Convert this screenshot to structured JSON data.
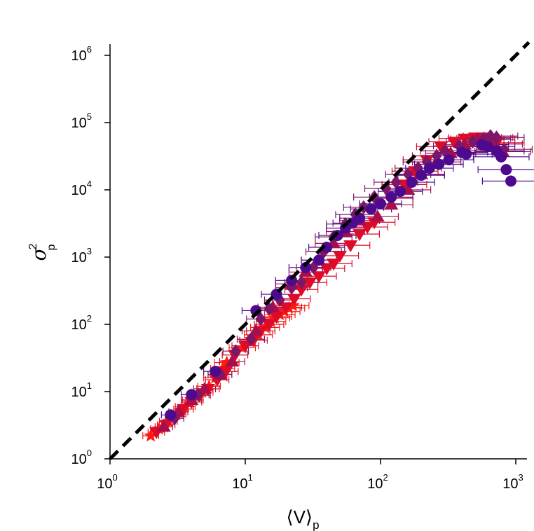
{
  "chart_data": {
    "type": "scatter",
    "x_scale": "log",
    "y_scale": "log",
    "xlim": [
      1,
      1000
    ],
    "ylim": [
      1,
      1000000
    ],
    "x_ticks": [
      {
        "value": 1,
        "base": "10",
        "exp": "0"
      },
      {
        "value": 10,
        "base": "10",
        "exp": "1"
      },
      {
        "value": 100,
        "base": "10",
        "exp": "2"
      },
      {
        "value": 1000,
        "base": "10",
        "exp": "3"
      }
    ],
    "y_ticks": [
      {
        "value": 1,
        "base": "10",
        "exp": "0"
      },
      {
        "value": 10,
        "base": "10",
        "exp": "1"
      },
      {
        "value": 100,
        "base": "10",
        "exp": "2"
      },
      {
        "value": 1000,
        "base": "10",
        "exp": "3"
      },
      {
        "value": 10000,
        "base": "10",
        "exp": "4"
      },
      {
        "value": 100000,
        "base": "10",
        "exp": "5"
      },
      {
        "value": 1000000,
        "base": "10",
        "exp": "6"
      }
    ],
    "xlabel": {
      "main": "⟨V⟩",
      "sub": "p"
    },
    "ylabel": {
      "main": "σ",
      "sup": "2",
      "sub": "p"
    },
    "grid": false,
    "reference_line": {
      "style": "dashed",
      "color": "#000000",
      "points": [
        [
          1,
          1
        ],
        [
          1250,
          1562500
        ]
      ]
    },
    "series": [
      {
        "marker": "star",
        "color": "#ff1a0d",
        "points": [
          [
            2.0,
            2.2
          ],
          [
            2.3,
            2.8
          ],
          [
            2.7,
            3.6
          ],
          [
            3.1,
            4.6
          ],
          [
            3.6,
            6.0
          ],
          [
            4.1,
            7.5
          ],
          [
            4.8,
            9.8
          ],
          [
            5.4,
            12
          ],
          [
            6.0,
            16
          ],
          [
            6.8,
            22
          ],
          [
            7.3,
            27
          ],
          [
            9.5,
            45
          ],
          [
            11,
            60
          ],
          [
            12.5,
            70
          ],
          [
            14,
            90
          ],
          [
            15.5,
            110
          ],
          [
            16.5,
            125
          ],
          [
            18,
            140
          ],
          [
            19.5,
            155
          ],
          [
            21,
            175
          ],
          [
            22.5,
            190
          ]
        ]
      },
      {
        "marker": "triangle-down",
        "color": "#dd0a28",
        "points": [
          [
            2.2,
            2.5
          ],
          [
            2.6,
            3.2
          ],
          [
            3.0,
            4.2
          ],
          [
            3.5,
            5.5
          ],
          [
            4.0,
            7.0
          ],
          [
            4.6,
            8.8
          ],
          [
            5.3,
            11
          ],
          [
            6.2,
            15
          ],
          [
            7.2,
            20
          ],
          [
            8.4,
            35
          ],
          [
            10,
            48
          ],
          [
            11.5,
            58
          ],
          [
            13,
            80
          ],
          [
            15,
            100
          ],
          [
            17,
            130
          ],
          [
            20,
            180
          ],
          [
            23,
            240
          ],
          [
            26,
            330
          ],
          [
            30,
            420
          ],
          [
            35,
            520
          ],
          [
            40,
            680
          ],
          [
            45,
            800
          ],
          [
            50,
            1050
          ],
          [
            60,
            1500
          ],
          [
            70,
            2200
          ],
          [
            80,
            2800
          ],
          [
            90,
            3300
          ],
          [
            120,
            7500
          ],
          [
            150,
            12000
          ],
          [
            180,
            19000
          ],
          [
            220,
            28000
          ],
          [
            280,
            44000
          ],
          [
            350,
            52000
          ],
          [
            420,
            58000
          ],
          [
            500,
            60000
          ],
          [
            600,
            60000
          ],
          [
            720,
            50000
          ]
        ]
      },
      {
        "marker": "triangle-up",
        "color": "#a80d4c",
        "points": [
          [
            2.5,
            3.0
          ],
          [
            3.2,
            5.0
          ],
          [
            4.0,
            7.5
          ],
          [
            5.0,
            11
          ],
          [
            6.5,
            18
          ],
          [
            8.0,
            28
          ],
          [
            12,
            80
          ],
          [
            16,
            180
          ],
          [
            22,
            400
          ],
          [
            28,
            600
          ],
          [
            35,
            900
          ],
          [
            45,
            1600
          ],
          [
            55,
            2400
          ],
          [
            70,
            3500
          ],
          [
            95,
            4000
          ],
          [
            120,
            6000
          ],
          [
            160,
            10000
          ],
          [
            200,
            17000
          ],
          [
            260,
            26000
          ],
          [
            330,
            35000
          ],
          [
            420,
            47000
          ],
          [
            520,
            57000
          ],
          [
            620,
            56000
          ],
          [
            700,
            48000
          ],
          [
            800,
            37000
          ]
        ]
      },
      {
        "marker": "diamond",
        "color": "#7e1668",
        "points": [
          [
            3.0,
            4.0
          ],
          [
            4.5,
            9.0
          ],
          [
            6.5,
            18
          ],
          [
            8.5,
            40
          ],
          [
            11,
            60
          ],
          [
            13,
            120
          ],
          [
            15,
            170
          ],
          [
            18,
            230
          ],
          [
            22,
            350
          ],
          [
            26,
            420
          ],
          [
            32,
            700
          ],
          [
            38,
            1200
          ],
          [
            45,
            2000
          ],
          [
            55,
            3100
          ],
          [
            65,
            4300
          ],
          [
            75,
            5500
          ],
          [
            90,
            7800
          ],
          [
            110,
            10500
          ],
          [
            130,
            13000
          ],
          [
            160,
            17000
          ],
          [
            190,
            21000
          ],
          [
            220,
            26000
          ],
          [
            260,
            32000
          ],
          [
            300,
            38000
          ],
          [
            380,
            45000
          ],
          [
            480,
            52000
          ],
          [
            580,
            58000
          ],
          [
            650,
            63000
          ],
          [
            720,
            60000
          ],
          [
            820,
            40000
          ]
        ]
      },
      {
        "marker": "circle",
        "color": "#4e0a8e",
        "points": [
          [
            2.8,
            4.5
          ],
          [
            4.0,
            9.0
          ],
          [
            6.0,
            20
          ],
          [
            12,
            160
          ],
          [
            17,
            280
          ],
          [
            22,
            450
          ],
          [
            28,
            700
          ],
          [
            35,
            900
          ],
          [
            40,
            1400
          ],
          [
            48,
            2100
          ],
          [
            55,
            2700
          ],
          [
            62,
            3200
          ],
          [
            70,
            3800
          ],
          [
            85,
            5200
          ],
          [
            100,
            6200
          ],
          [
            120,
            7800
          ],
          [
            140,
            9500
          ],
          [
            170,
            13000
          ],
          [
            200,
            16500
          ],
          [
            230,
            21000
          ],
          [
            270,
            24000
          ],
          [
            320,
            28000
          ],
          [
            400,
            36000
          ],
          [
            430,
            34000
          ],
          [
            560,
            47000
          ],
          [
            620,
            44000
          ],
          [
            720,
            38000
          ],
          [
            780,
            31000
          ],
          [
            850,
            20000
          ],
          [
            920,
            13500
          ]
        ]
      }
    ]
  }
}
